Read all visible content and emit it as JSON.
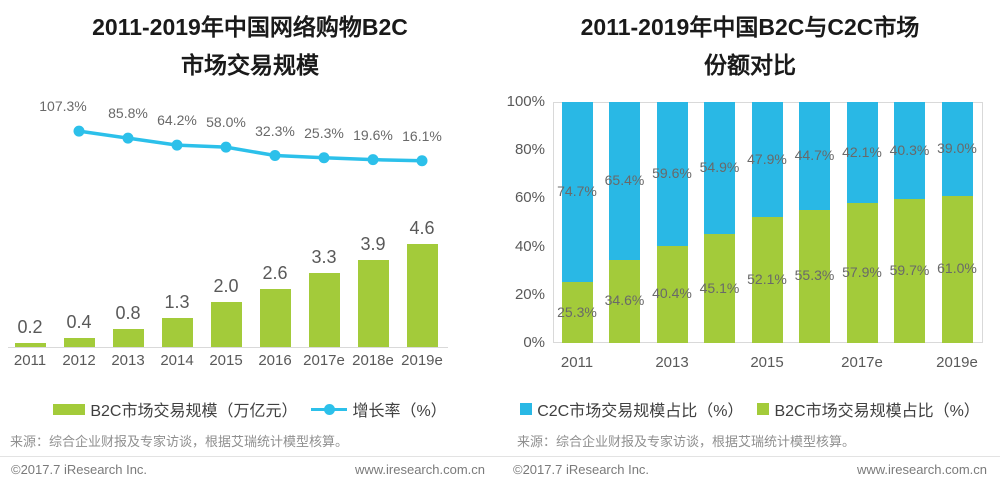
{
  "accent_colors": {
    "green": "#a3cb3a",
    "blue": "#29b8e5",
    "cyan_line": "#2cc0ea"
  },
  "chart_data": [
    {
      "id": "b2c-market-scale",
      "type": "bar",
      "title_line1": "2011-2019年中国网络购物B2C",
      "title_line2": "市场交易规模",
      "categories": [
        "2011",
        "2012",
        "2013",
        "2014",
        "2015",
        "2016",
        "2017e",
        "2018e",
        "2019e"
      ],
      "bar_series": {
        "name": "B2C市场交易规模（万亿元）",
        "color": "#a3cb3a",
        "values": [
          0.2,
          0.4,
          0.8,
          1.3,
          2.0,
          2.6,
          3.3,
          3.9,
          4.6
        ]
      },
      "line_series": {
        "name": "增长率（%）",
        "color": "#2cc0ea",
        "values": [
          null,
          107.3,
          85.8,
          64.2,
          58.0,
          32.3,
          25.3,
          19.6,
          16.1
        ],
        "suffix": "%"
      },
      "grid": "off",
      "legend_position": "bottom",
      "source": "来源：综合企业财报及专家访谈，根据艾瑞统计模型核算。",
      "footer_left": "©2017.7 iResearch Inc.",
      "footer_right": "www.iresearch.com.cn"
    },
    {
      "id": "b2c-c2c-share",
      "type": "bar",
      "subtype": "stacked-100",
      "title_line1": "2011-2019年中国B2C与C2C市场",
      "title_line2": "份额对比",
      "categories": [
        "2011",
        "2012",
        "2013",
        "2014",
        "2015",
        "2016",
        "2017e",
        "2018e",
        "2019e"
      ],
      "x_tick_labels": [
        "2011",
        "2013",
        "2015",
        "2017e",
        "2019e"
      ],
      "y_tick_labels": [
        "0%",
        "20%",
        "40%",
        "60%",
        "80%",
        "100%"
      ],
      "ylim": [
        0,
        100
      ],
      "series": [
        {
          "name": "C2C市场交易规模占比（%）",
          "color": "#29b8e5",
          "values": [
            74.7,
            65.4,
            59.6,
            54.9,
            47.9,
            44.7,
            42.1,
            40.3,
            39.0
          ]
        },
        {
          "name": "B2C市场交易规模占比（%）",
          "color": "#a3cb3a",
          "values": [
            25.3,
            34.6,
            40.4,
            45.1,
            52.1,
            55.3,
            57.9,
            59.7,
            61.0
          ]
        }
      ],
      "grid": "frame-only",
      "legend_position": "bottom",
      "source": "来源：综合企业财报及专家访谈，根据艾瑞统计模型核算。",
      "footer_left": "©2017.7 iResearch Inc.",
      "footer_right": "www.iresearch.com.cn"
    }
  ]
}
